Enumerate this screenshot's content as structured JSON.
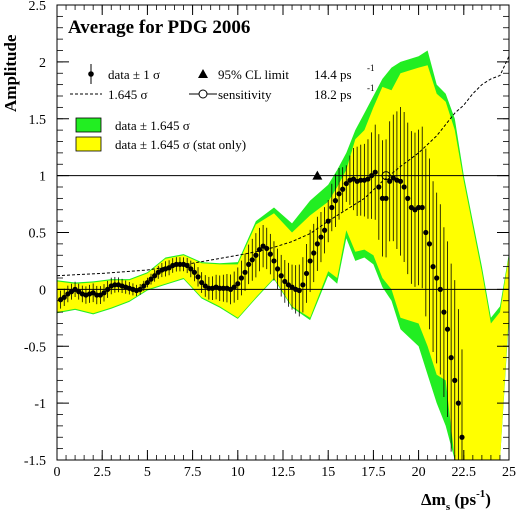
{
  "chart_data": {
    "type": "scatter",
    "title": "Average for PDG 2006",
    "xlabel": "Δm_s (ps⁻¹)",
    "xlabel_main": "Δm",
    "xlabel_sub": "s",
    "xlabel_unit": " (ps",
    "xlabel_sup": "-1",
    "xlabel_close": ")",
    "ylabel": "Amplitude",
    "xlim": [
      0,
      25
    ],
    "ylim": [
      -1.5,
      2.5
    ],
    "xticks": [
      0,
      2.5,
      5,
      7.5,
      10,
      12.5,
      15,
      17.5,
      20,
      22.5,
      25
    ],
    "xtick_labels": [
      "0",
      "2.5",
      "5",
      "7.5",
      "10",
      "12.5",
      "15",
      "17.5",
      "20",
      "22.5",
      "25"
    ],
    "yticks": [
      -1.5,
      -1,
      -0.5,
      0,
      0.5,
      1,
      1.5,
      2,
      2.5
    ],
    "ytick_labels": [
      "-1.5",
      "-1",
      "-0.5",
      "0",
      "0.5",
      "1",
      "1.5",
      "2",
      "2.5"
    ],
    "reference_lines": [
      0,
      1
    ],
    "colors": {
      "band_total": "#22ee22",
      "band_stat": "#ffff00",
      "points": "#000000"
    },
    "legend": {
      "data": "data ± 1 σ",
      "sigma_line": "1.645 σ",
      "limit": "95% CL limit",
      "limit_value": "14.4 ps",
      "limit_sup": "-1",
      "sensitivity": "sensitivity",
      "sensitivity_value": "18.2 ps",
      "sensitivity_sup": "-1",
      "band_total": "data ± 1.645 σ",
      "band_stat": "data ± 1.645 σ (stat only)"
    },
    "series": [
      {
        "name": "data ± 1 σ",
        "x": [
          0.2,
          0.4,
          0.6,
          0.8,
          1,
          1.2,
          1.4,
          1.6,
          1.8,
          2,
          2.2,
          2.4,
          2.6,
          2.8,
          3,
          3.2,
          3.4,
          3.6,
          3.8,
          4,
          4.2,
          4.4,
          4.6,
          4.8,
          5,
          5.2,
          5.4,
          5.6,
          5.8,
          6,
          6.2,
          6.4,
          6.6,
          6.8,
          7,
          7.2,
          7.4,
          7.6,
          7.8,
          8,
          8.2,
          8.4,
          8.6,
          8.8,
          9,
          9.2,
          9.4,
          9.6,
          9.8,
          10,
          10.2,
          10.4,
          10.6,
          10.8,
          11,
          11.2,
          11.4,
          11.6,
          11.8,
          12,
          12.2,
          12.4,
          12.6,
          12.8,
          13,
          13.2,
          13.4,
          13.6,
          13.8,
          14,
          14.2,
          14.4,
          14.6,
          14.8,
          15,
          15.2,
          15.4,
          15.6,
          15.8,
          16,
          16.2,
          16.4,
          16.6,
          16.8,
          17,
          17.2,
          17.4,
          17.6,
          17.8,
          18,
          18.2,
          18.4,
          18.6,
          18.8,
          19,
          19.2,
          19.4,
          19.6,
          19.8,
          20,
          20.2,
          20.4,
          20.6,
          20.8,
          21,
          21.2,
          21.4,
          21.6,
          21.8,
          22,
          22.2,
          22.4
        ],
        "y": [
          -0.09,
          -0.07,
          -0.04,
          -0.02,
          0.0,
          -0.02,
          -0.04,
          -0.05,
          -0.04,
          -0.03,
          -0.05,
          -0.05,
          -0.03,
          0.0,
          0.03,
          0.04,
          0.04,
          0.03,
          0.02,
          0.01,
          0.0,
          -0.01,
          0.0,
          0.03,
          0.06,
          0.09,
          0.12,
          0.15,
          0.17,
          0.18,
          0.19,
          0.21,
          0.22,
          0.22,
          0.22,
          0.21,
          0.18,
          0.15,
          0.11,
          0.06,
          0.03,
          0.01,
          0.01,
          0.02,
          0.01,
          0.01,
          0.01,
          0.0,
          0.02,
          0.05,
          0.1,
          0.15,
          0.22,
          0.26,
          0.3,
          0.35,
          0.38,
          0.36,
          0.31,
          0.25,
          0.18,
          0.12,
          0.07,
          0.04,
          0.02,
          0.0,
          -0.01,
          0.04,
          0.14,
          0.25,
          0.32,
          0.4,
          0.46,
          0.52,
          0.6,
          0.72,
          0.78,
          0.84,
          0.88,
          0.93,
          0.96,
          0.97,
          0.95,
          0.96,
          0.96,
          0.97,
          1.0,
          1.03,
          0.9,
          0.8,
          0.8,
          0.95,
          0.98,
          0.96,
          0.95,
          0.9,
          0.8,
          0.72,
          0.7,
          0.72,
          0.72,
          0.5,
          0.4,
          0.2,
          0.1,
          0.0,
          -0.2,
          -0.35,
          -0.6,
          -0.8,
          -1.0,
          -1.3
        ]
      }
    ],
    "band_x": [
      0,
      1,
      2,
      3,
      4,
      5,
      6,
      7,
      8,
      9,
      10,
      11,
      12,
      13,
      14,
      15,
      15.5,
      16,
      16.5,
      17,
      17.5,
      18,
      18.5,
      19,
      20,
      20.5,
      21,
      21.5,
      22,
      22.5,
      23,
      23.5,
      24,
      24.5,
      25
    ],
    "band_stat_upper": [
      0.07,
      0.05,
      0.06,
      0.08,
      0.08,
      0.14,
      0.27,
      0.3,
      0.23,
      0.22,
      0.22,
      0.57,
      0.67,
      0.5,
      0.65,
      0.77,
      0.9,
      1.05,
      1.32,
      1.4,
      1.6,
      1.78,
      1.75,
      1.9,
      1.95,
      1.97,
      1.72,
      1.65,
      1.4,
      0.95,
      0.55,
      0.15,
      -0.3,
      -0.2,
      0.3
    ],
    "band_stat_lower": [
      -0.2,
      -0.17,
      -0.21,
      -0.16,
      -0.1,
      0.0,
      0.05,
      0.1,
      -0.07,
      -0.15,
      -0.25,
      -0.07,
      0.1,
      -0.15,
      -0.25,
      0.16,
      0.1,
      0.52,
      0.33,
      0.35,
      0.3,
      0.1,
      0.0,
      -0.25,
      -0.3,
      -0.5,
      -0.75,
      -0.8,
      -1.5,
      -1.5,
      -1.5,
      -1.5,
      -1.5,
      -1.5,
      -0.2
    ],
    "band_total_upper": [
      0.08,
      0.06,
      0.07,
      0.09,
      0.09,
      0.15,
      0.28,
      0.31,
      0.24,
      0.23,
      0.24,
      0.6,
      0.72,
      0.58,
      0.78,
      0.92,
      1.05,
      1.2,
      1.4,
      1.55,
      1.7,
      1.85,
      1.95,
      2.0,
      2.05,
      2.1,
      1.8,
      1.72,
      1.5,
      1.0,
      0.6,
      0.2,
      -0.25,
      -0.15,
      0.32
    ],
    "band_total_lower": [
      -0.21,
      -0.18,
      -0.22,
      -0.17,
      -0.11,
      -0.01,
      0.04,
      0.09,
      -0.08,
      -0.16,
      -0.26,
      -0.08,
      0.09,
      -0.16,
      -0.27,
      0.12,
      0.05,
      0.45,
      0.25,
      0.28,
      0.22,
      0.02,
      -0.1,
      -0.35,
      -0.5,
      -0.75,
      -1.0,
      -1.2,
      -1.5,
      -1.5,
      -1.5,
      -1.5,
      -1.5,
      -1.5,
      -0.25
    ],
    "sigma_line_x": [
      0,
      2.5,
      5,
      7.5,
      10,
      11,
      12,
      13,
      14,
      15,
      16,
      17,
      18,
      19,
      20,
      21,
      22,
      22.5,
      23,
      23.5,
      24,
      24.5,
      25
    ],
    "sigma_line_y": [
      0.12,
      0.14,
      0.17,
      0.23,
      0.3,
      0.33,
      0.37,
      0.42,
      0.49,
      0.6,
      0.7,
      0.8,
      0.95,
      1.08,
      1.2,
      1.35,
      1.55,
      1.62,
      1.72,
      1.8,
      1.85,
      1.88,
      2.05
    ],
    "limit_marker": {
      "x": 14.4,
      "y": 1.0
    },
    "sensitivity_marker": {
      "x": 18.2,
      "y": 1.0
    }
  }
}
